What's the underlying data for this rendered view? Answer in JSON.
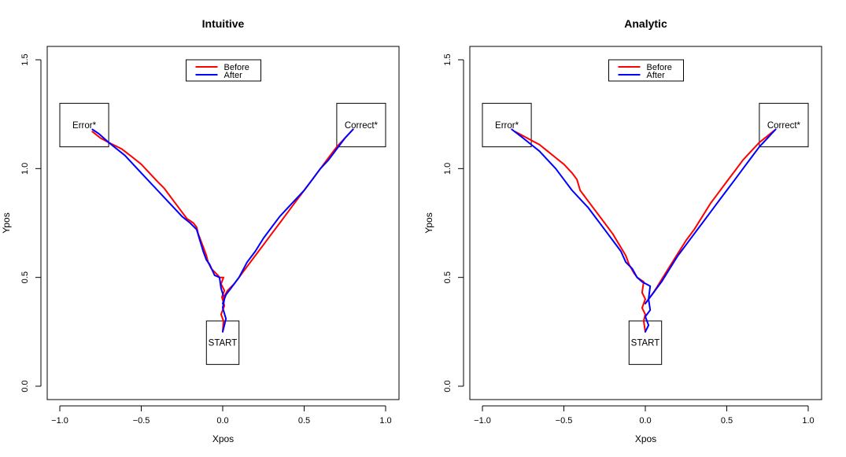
{
  "chart_data": [
    {
      "type": "line",
      "title": "Intuitive",
      "xlabel": "Xpos",
      "ylabel": "Ypos",
      "xlim": [
        -1.0,
        1.0
      ],
      "ylim": [
        0.0,
        1.5
      ],
      "x_ticks": [
        -1.0,
        -0.5,
        0.0,
        0.5,
        1.0
      ],
      "x_tick_labels": [
        "−1.0",
        "−0.5",
        "0.0",
        "0.5",
        "1.0"
      ],
      "y_ticks": [
        0.0,
        0.5,
        1.0,
        1.5
      ],
      "y_tick_labels": [
        "0.0",
        "0.5",
        "1.0",
        "1.5"
      ],
      "legend": {
        "placement": "top-center",
        "entries": [
          "Before",
          "After"
        ]
      },
      "boxes": [
        {
          "label": "Error*",
          "x": [
            -1.0,
            -0.7
          ],
          "y": [
            1.1,
            1.3
          ]
        },
        {
          "label": "Correct*",
          "x": [
            0.7,
            1.0
          ],
          "y": [
            1.1,
            1.3
          ]
        },
        {
          "label": "START",
          "x": [
            -0.1,
            0.1
          ],
          "y": [
            0.1,
            0.3
          ]
        }
      ],
      "series": [
        {
          "name": "Before",
          "color": "#ff0000",
          "x": [
            0.0,
            0.005,
            -0.01,
            0.01,
            -0.005,
            0.01,
            -0.01,
            0.005,
            -0.02,
            -0.03,
            -0.07,
            -0.09,
            -0.1,
            -0.12,
            -0.15,
            -0.16,
            -0.18,
            -0.22,
            -0.25,
            -0.3,
            -0.33,
            -0.36,
            -0.4,
            -0.45,
            -0.5,
            -0.55,
            -0.62,
            -0.7,
            -0.75,
            -0.8
          ],
          "y": [
            0.25,
            0.3,
            0.33,
            0.37,
            0.41,
            0.44,
            0.47,
            0.5,
            0.5,
            0.51,
            0.54,
            0.57,
            0.6,
            0.64,
            0.7,
            0.73,
            0.75,
            0.77,
            0.8,
            0.85,
            0.88,
            0.91,
            0.94,
            0.98,
            1.02,
            1.05,
            1.09,
            1.12,
            1.14,
            1.17
          ]
        },
        {
          "name": "After",
          "color": "#0000ff",
          "x": [
            0.0,
            0.01,
            0.02,
            0.0,
            0.01,
            -0.01,
            -0.02,
            -0.05,
            -0.08,
            -0.1,
            -0.12,
            -0.14,
            -0.16,
            -0.2,
            -0.25,
            -0.3,
            -0.4,
            -0.5,
            -0.6,
            -0.7,
            -0.76,
            -0.8
          ],
          "y": [
            0.25,
            0.28,
            0.31,
            0.36,
            0.4,
            0.45,
            0.5,
            0.51,
            0.56,
            0.58,
            0.62,
            0.67,
            0.72,
            0.75,
            0.78,
            0.82,
            0.9,
            0.98,
            1.06,
            1.12,
            1.16,
            1.18
          ]
        },
        {
          "name": "Before",
          "color": "#ff0000",
          "x": [
            0.0,
            0.03,
            0.07,
            0.1,
            0.15,
            0.2,
            0.25,
            0.3,
            0.35,
            0.4,
            0.45,
            0.5,
            0.55,
            0.6,
            0.65,
            0.7,
            0.75,
            0.8
          ],
          "y": [
            0.4,
            0.44,
            0.47,
            0.5,
            0.55,
            0.6,
            0.65,
            0.7,
            0.75,
            0.8,
            0.85,
            0.9,
            0.95,
            1.0,
            1.05,
            1.1,
            1.14,
            1.18
          ]
        },
        {
          "name": "After",
          "color": "#0000ff",
          "x": [
            0.0,
            0.02,
            0.05,
            0.08,
            0.1,
            0.15,
            0.2,
            0.25,
            0.3,
            0.35,
            0.4,
            0.45,
            0.5,
            0.55,
            0.6,
            0.65,
            0.7,
            0.75,
            0.8
          ],
          "y": [
            0.38,
            0.42,
            0.45,
            0.48,
            0.5,
            0.57,
            0.62,
            0.68,
            0.73,
            0.78,
            0.82,
            0.86,
            0.9,
            0.95,
            1.0,
            1.04,
            1.09,
            1.14,
            1.18
          ]
        }
      ]
    },
    {
      "type": "line",
      "title": "Analytic",
      "xlabel": "Xpos",
      "ylabel": "Ypos",
      "xlim": [
        -1.0,
        1.0
      ],
      "ylim": [
        0.0,
        1.5
      ],
      "x_ticks": [
        -1.0,
        -0.5,
        0.0,
        0.5,
        1.0
      ],
      "x_tick_labels": [
        "−1.0",
        "−0.5",
        "0.0",
        "0.5",
        "1.0"
      ],
      "y_ticks": [
        0.0,
        0.5,
        1.0,
        1.5
      ],
      "y_tick_labels": [
        "0.0",
        "0.5",
        "1.0",
        "1.5"
      ],
      "legend": {
        "placement": "top-center",
        "entries": [
          "Before",
          "After"
        ]
      },
      "boxes": [
        {
          "label": "Error*",
          "x": [
            -1.0,
            -0.7
          ],
          "y": [
            1.1,
            1.3
          ]
        },
        {
          "label": "Correct*",
          "x": [
            0.7,
            1.0
          ],
          "y": [
            1.1,
            1.3
          ]
        },
        {
          "label": "START",
          "x": [
            -0.1,
            0.1
          ],
          "y": [
            0.1,
            0.3
          ]
        }
      ],
      "series": [
        {
          "name": "Before",
          "color": "#ff0000",
          "x": [
            0.0,
            -0.01,
            0.0,
            -0.02,
            0.0,
            -0.02,
            -0.01,
            -0.05,
            -0.07,
            -0.1,
            -0.12,
            -0.16,
            -0.2,
            -0.25,
            -0.3,
            -0.35,
            -0.4,
            -0.42,
            -0.45,
            -0.5,
            -0.55,
            -0.6,
            -0.65,
            -0.7,
            -0.75,
            -0.8
          ],
          "y": [
            0.25,
            0.3,
            0.33,
            0.36,
            0.4,
            0.43,
            0.48,
            0.5,
            0.52,
            0.56,
            0.6,
            0.65,
            0.7,
            0.75,
            0.8,
            0.85,
            0.9,
            0.95,
            0.98,
            1.02,
            1.05,
            1.08,
            1.11,
            1.13,
            1.15,
            1.17
          ]
        },
        {
          "name": "After",
          "color": "#0000ff",
          "x": [
            0.0,
            0.02,
            0.0,
            0.03,
            0.02,
            0.03,
            -0.02,
            -0.05,
            -0.08,
            -0.12,
            -0.15,
            -0.2,
            -0.25,
            -0.3,
            -0.35,
            -0.4,
            -0.45,
            -0.5,
            -0.55,
            -0.6,
            -0.65,
            -0.7,
            -0.75,
            -0.82
          ],
          "y": [
            0.25,
            0.28,
            0.32,
            0.35,
            0.4,
            0.46,
            0.48,
            0.5,
            0.54,
            0.57,
            0.62,
            0.67,
            0.72,
            0.77,
            0.82,
            0.86,
            0.9,
            0.95,
            1.0,
            1.04,
            1.08,
            1.11,
            1.14,
            1.18
          ]
        },
        {
          "name": "Before",
          "color": "#ff0000",
          "x": [
            0.0,
            0.05,
            0.1,
            0.15,
            0.2,
            0.25,
            0.3,
            0.35,
            0.4,
            0.45,
            0.5,
            0.55,
            0.6,
            0.65,
            0.7,
            0.75,
            0.8
          ],
          "y": [
            0.38,
            0.43,
            0.49,
            0.55,
            0.61,
            0.67,
            0.72,
            0.78,
            0.84,
            0.89,
            0.94,
            0.99,
            1.04,
            1.08,
            1.12,
            1.15,
            1.18
          ]
        },
        {
          "name": "After",
          "color": "#0000ff",
          "x": [
            0.0,
            0.05,
            0.1,
            0.15,
            0.2,
            0.25,
            0.3,
            0.35,
            0.4,
            0.45,
            0.5,
            0.55,
            0.6,
            0.65,
            0.7,
            0.75,
            0.8
          ],
          "y": [
            0.38,
            0.43,
            0.48,
            0.54,
            0.6,
            0.65,
            0.7,
            0.75,
            0.8,
            0.85,
            0.9,
            0.95,
            1.0,
            1.05,
            1.1,
            1.14,
            1.18
          ]
        }
      ]
    }
  ]
}
